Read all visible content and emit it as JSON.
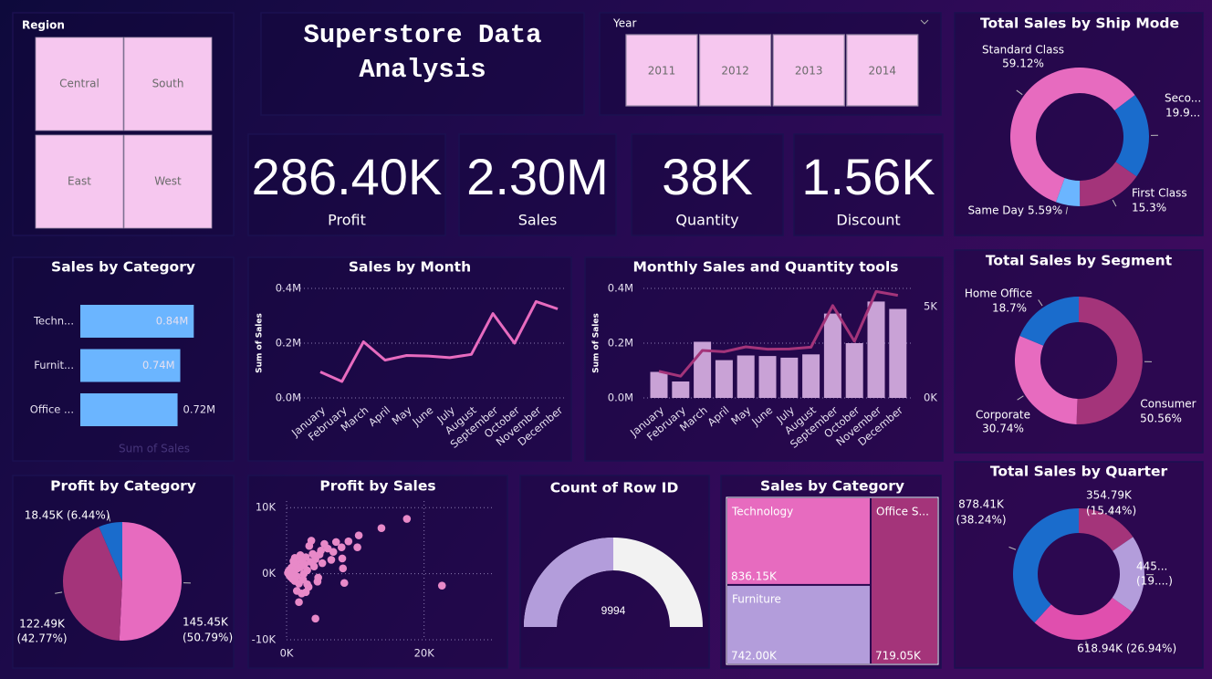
{
  "region_slicer": {
    "title": "Region",
    "items": [
      "Central",
      "South",
      "East",
      "West"
    ]
  },
  "header": {
    "title": "Superstore Data Analysis"
  },
  "year_slicer": {
    "title": "Year",
    "items": [
      2011,
      2012,
      2013,
      2014
    ]
  },
  "cards": [
    {
      "value": "286.40K",
      "label": "Profit"
    },
    {
      "value": "2.30M",
      "label": "Sales"
    },
    {
      "value": "38K",
      "label": "Quantity"
    },
    {
      "value": "1.56K",
      "label": "Discount"
    }
  ],
  "chart_data": [
    {
      "type": "bar",
      "title": "Sales by Category",
      "categories": [
        "Techn...",
        "Furnit...",
        "Office ..."
      ],
      "values": [
        0.84,
        0.74,
        0.72
      ],
      "value_labels": [
        "0.84M",
        "0.74M",
        "0.72M"
      ],
      "color": "#6bb5ff",
      "xlabel": "Sum of Sales",
      "xlim": [
        0,
        1
      ]
    },
    {
      "type": "line",
      "title": "Sales by Month",
      "categories": [
        "January",
        "February",
        "March",
        "April",
        "May",
        "June",
        "July",
        "August",
        "September",
        "October",
        "November",
        "December"
      ],
      "values": [
        0.095,
        0.06,
        0.205,
        0.138,
        0.155,
        0.153,
        0.147,
        0.159,
        0.308,
        0.2,
        0.352,
        0.325
      ],
      "color": "#e76bbf",
      "ylabel": "Sum of Sales",
      "ylim": [
        0,
        0.4
      ],
      "yticks": [
        {
          "value": 0,
          "label": "0.0M"
        },
        {
          "value": 0.2,
          "label": "0.2M"
        },
        {
          "value": 0.4,
          "label": "0.4M"
        }
      ],
      "grid": true
    },
    {
      "type": "combo",
      "title": "Monthly Sales and Quantity tools",
      "categories": [
        "January",
        "February",
        "March",
        "April",
        "May",
        "June",
        "July",
        "August",
        "September",
        "October",
        "November",
        "December"
      ],
      "series": [
        {
          "type": "bar",
          "color": "#c9a2d6",
          "values": [
            0.095,
            0.06,
            0.205,
            0.138,
            0.155,
            0.153,
            0.147,
            0.159,
            0.308,
            0.2,
            0.352,
            0.325
          ]
        },
        {
          "type": "line",
          "axis": "y2",
          "color": "#a4347a",
          "values": [
            1.46,
            1.19,
            2.6,
            2.53,
            2.8,
            2.67,
            2.68,
            2.78,
            5.06,
            3.1,
            5.83,
            5.62
          ]
        }
      ],
      "ylabel": "Sum of Sales",
      "ylim": [
        0,
        0.4
      ],
      "yticks": [
        {
          "value": 0,
          "label": "0.0M"
        },
        {
          "value": 0.2,
          "label": "0.2M"
        },
        {
          "value": 0.4,
          "label": "0.4M"
        }
      ],
      "y2lim": [
        0,
        6
      ],
      "y2ticks": [
        {
          "value": 0,
          "label": "0K"
        },
        {
          "value": 5,
          "label": "5K"
        }
      ],
      "grid": true
    },
    {
      "type": "donut",
      "title": "Total Sales by Ship Mode",
      "categories": [
        "Standard Class",
        "Seco...",
        "First Class",
        "Same Day"
      ],
      "values": [
        59.12,
        19.99,
        15.3,
        5.59
      ],
      "value_labels": [
        "59.12%",
        "19.9...",
        "15.3%",
        "5.59%"
      ],
      "colors": [
        "#e76bbf",
        "#1a6ccc",
        "#a4347a",
        "#6bb5ff"
      ]
    },
    {
      "type": "donut",
      "title": "Total Sales by Segment",
      "categories": [
        "Consumer",
        "Corporate",
        "Home Office"
      ],
      "values": [
        50.56,
        30.74,
        18.7
      ],
      "value_labels": [
        "50.56%",
        "30.74%",
        "18.7%"
      ],
      "colors": [
        "#a4347a",
        "#e76bbf",
        "#1a6ccc"
      ]
    },
    {
      "type": "pie",
      "title": "Profit by Category",
      "values": [
        145.45,
        122.49,
        18.45
      ],
      "value_labels": [
        "145.45K",
        "122.49K",
        "18.45K"
      ],
      "share_labels": [
        "(50.79%)",
        "(42.77%)",
        "(6.44%)"
      ],
      "colors": [
        "#e76bbf",
        "#a4347a",
        "#1a6ccc"
      ]
    },
    {
      "type": "scatter",
      "title": "Profit by Sales",
      "color": "#e889c8",
      "x": [
        0.2,
        0.3,
        0.4,
        0.5,
        0.6,
        0.7,
        0.8,
        0.9,
        1.0,
        1.1,
        1.2,
        1.3,
        1.4,
        1.5,
        1.6,
        1.8,
        2.0,
        2.2,
        2.4,
        2.6,
        2.8,
        3.0,
        3.2,
        3.5,
        3.8,
        4.2,
        4.5,
        5.0,
        0.5,
        1.0,
        1.5,
        2.0,
        2.5,
        3.0,
        1.2,
        2.2,
        3.3,
        4.0,
        4.8,
        5.5,
        6.0,
        6.5,
        7.2,
        8.0,
        8.1,
        8.2,
        8.4,
        9.0,
        10.3,
        10.5,
        13.8,
        17.5,
        22.6,
        4.2,
        2.8,
        3.6,
        1.8,
        5.2,
        6.8,
        4.6
      ],
      "values": [
        0.1,
        0.4,
        -0.2,
        0.6,
        -0.5,
        0.9,
        0.2,
        -0.8,
        1.2,
        0.3,
        -1.1,
        0.7,
        1.5,
        -0.4,
        0.8,
        -1.5,
        1.0,
        2.1,
        -0.9,
        1.4,
        2.5,
        0.5,
        -2.0,
        1.8,
        3.0,
        2.2,
        -1.2,
        3.5,
        -0.3,
        1.9,
        -2.6,
        2.8,
        0.0,
        -1.6,
        2.4,
        -3.0,
        4.2,
        1.1,
        2.9,
        4.5,
        3.8,
        2.1,
        4.8,
        4.0,
        2.3,
        0.8,
        -1.4,
        4.9,
        4.0,
        5.8,
        6.9,
        8.3,
        -1.8,
        -6.8,
        -2.8,
        5.0,
        -4.3,
        1.6,
        3.3,
        -0.6
      ],
      "xlim": [
        0,
        30
      ],
      "xticks": [
        {
          "value": 0,
          "label": "0K"
        },
        {
          "value": 20,
          "label": "20K"
        }
      ],
      "ylim": [
        -10,
        11
      ],
      "yticks": [
        {
          "value": -10,
          "label": "-10K"
        },
        {
          "value": 0,
          "label": "0K"
        },
        {
          "value": 10,
          "label": "10K"
        }
      ],
      "grid": true
    },
    {
      "type": "gauge",
      "title": "Count of Row ID",
      "value": 9994,
      "ylim": [
        0,
        19988
      ],
      "colors": [
        "#b39ddb",
        "#f2f2f2"
      ]
    },
    {
      "type": "treemap",
      "title": "Sales by Category",
      "categories": [
        "Technology",
        "Furniture",
        "Office S..."
      ],
      "values": [
        836.15,
        742.0,
        719.05
      ],
      "value_labels": [
        "836.15K",
        "742.00K",
        "719.05K"
      ],
      "colors": [
        "#e76bbf",
        "#b39ddb",
        "#a4347a"
      ]
    },
    {
      "type": "donut",
      "title": "Total Sales by Quarter",
      "values": [
        354.79,
        445.06,
        618.94,
        878.41
      ],
      "value_labels": [
        "354.79K",
        "445...",
        "618.94K",
        "878.41K"
      ],
      "share_labels": [
        "(15.44%)",
        "(19....)",
        "(26.94%)",
        "(38.24%)"
      ],
      "colors": [
        "#a4347a",
        "#b39ddb",
        "#e04fae",
        "#1a6ccc"
      ]
    }
  ]
}
